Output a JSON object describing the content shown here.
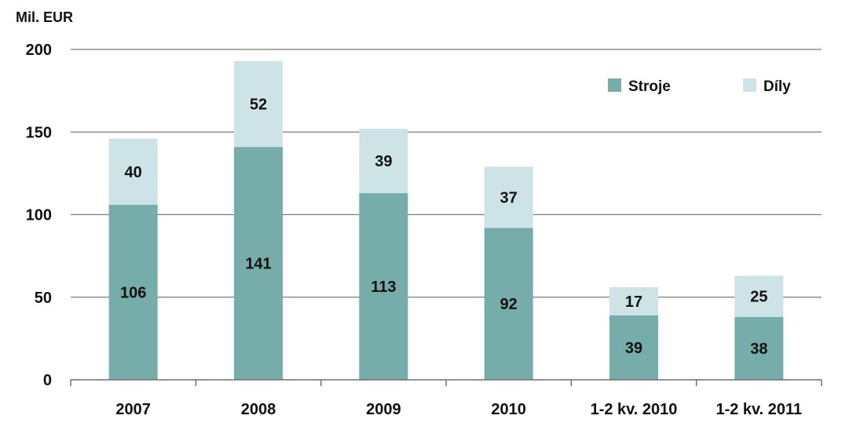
{
  "chart_data": {
    "type": "bar",
    "stacked": true,
    "title": "",
    "ylabel": "Mil. EUR",
    "xlabel": "",
    "categories": [
      "2007",
      "2008",
      "2009",
      "2010",
      "1-2 kv. 2010",
      "1-2 kv. 2011"
    ],
    "series": [
      {
        "name": "Stroje",
        "values": [
          106,
          141,
          113,
          92,
          39,
          38
        ],
        "color": "#76aca9"
      },
      {
        "name": "Díly",
        "values": [
          40,
          52,
          39,
          37,
          17,
          25
        ],
        "color": "#cde3e5"
      }
    ],
    "ylim": [
      0,
      200
    ],
    "yticks": [
      "0",
      "50",
      "100",
      "150",
      "200"
    ],
    "grid": true,
    "legend_position": "top-right"
  }
}
